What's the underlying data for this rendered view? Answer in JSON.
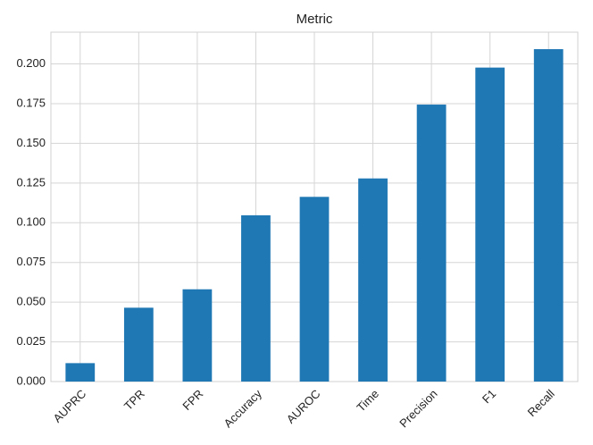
{
  "chart_data": {
    "type": "bar",
    "title": "Metric",
    "categories": [
      "AUPRC",
      "TPR",
      "FPR",
      "Accuracy",
      "AUROC",
      "Time",
      "Precision",
      "F1",
      "Recall"
    ],
    "values": [
      0.0116,
      0.0465,
      0.0581,
      0.1047,
      0.1163,
      0.1279,
      0.1744,
      0.1977,
      0.2093
    ],
    "color": "#1f77b4",
    "ylim": [
      0,
      0.22
    ],
    "yticks": [
      {
        "value": 0,
        "label": "0.000"
      },
      {
        "value": 0.025,
        "label": "0.025"
      },
      {
        "value": 0.05,
        "label": "0.050"
      },
      {
        "value": 0.075,
        "label": "0.075"
      },
      {
        "value": 0.1,
        "label": "0.100"
      },
      {
        "value": 0.125,
        "label": "0.125"
      },
      {
        "value": 0.15,
        "label": "0.150"
      },
      {
        "value": 0.175,
        "label": "0.175"
      },
      {
        "value": 0.2,
        "label": "0.200"
      }
    ],
    "grid": true
  }
}
